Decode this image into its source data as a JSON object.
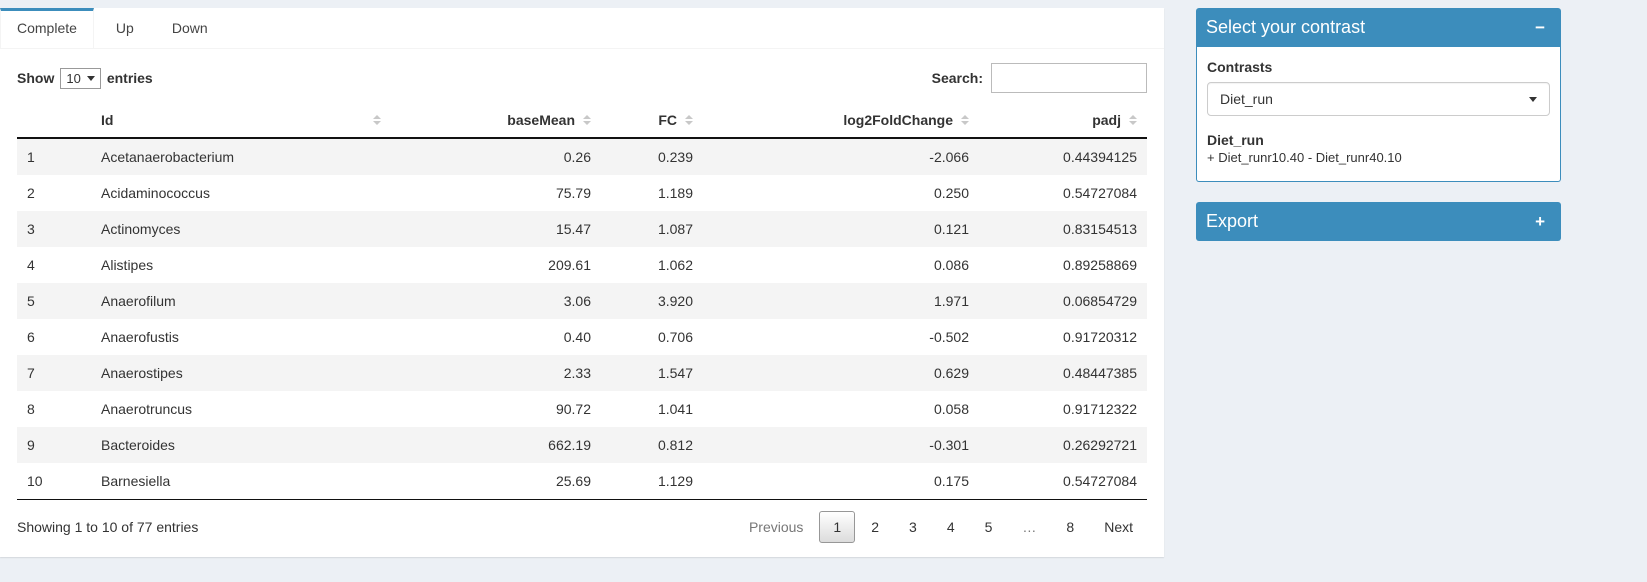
{
  "tabs": [
    {
      "label": "Complete",
      "active": true
    },
    {
      "label": "Up",
      "active": false
    },
    {
      "label": "Down",
      "active": false
    }
  ],
  "controls": {
    "show_label": "Show",
    "page_length": "10",
    "entries_label": "entries",
    "search_label": "Search:",
    "search_value": ""
  },
  "table": {
    "columns": [
      "",
      "Id",
      "baseMean",
      "FC",
      "log2FoldChange",
      "padj"
    ],
    "rows": [
      [
        "1",
        "Acetanaerobacterium",
        "0.26",
        "0.239",
        "-2.066",
        "0.44394125"
      ],
      [
        "2",
        "Acidaminococcus",
        "75.79",
        "1.189",
        "0.250",
        "0.54727084"
      ],
      [
        "3",
        "Actinomyces",
        "15.47",
        "1.087",
        "0.121",
        "0.83154513"
      ],
      [
        "4",
        "Alistipes",
        "209.61",
        "1.062",
        "0.086",
        "0.89258869"
      ],
      [
        "5",
        "Anaerofilum",
        "3.06",
        "3.920",
        "1.971",
        "0.06854729"
      ],
      [
        "6",
        "Anaerofustis",
        "0.40",
        "0.706",
        "-0.502",
        "0.91720312"
      ],
      [
        "7",
        "Anaerostipes",
        "2.33",
        "1.547",
        "0.629",
        "0.48447385"
      ],
      [
        "8",
        "Anaerotruncus",
        "90.72",
        "1.041",
        "0.058",
        "0.91712322"
      ],
      [
        "9",
        "Bacteroides",
        "662.19",
        "0.812",
        "-0.301",
        "0.26292721"
      ],
      [
        "10",
        "Barnesiella",
        "25.69",
        "1.129",
        "0.175",
        "0.54727084"
      ]
    ]
  },
  "footer": {
    "info": "Showing 1 to 10 of 77 entries",
    "pagination": [
      {
        "label": "Previous",
        "state": "disabled"
      },
      {
        "label": "1",
        "state": "active"
      },
      {
        "label": "2",
        "state": "normal"
      },
      {
        "label": "3",
        "state": "normal"
      },
      {
        "label": "4",
        "state": "normal"
      },
      {
        "label": "5",
        "state": "normal"
      },
      {
        "label": "…",
        "state": "disabled"
      },
      {
        "label": "8",
        "state": "normal"
      },
      {
        "label": "Next",
        "state": "normal"
      }
    ]
  },
  "contrast_box": {
    "title": "Select your contrast",
    "collapse_icon": "−",
    "contrasts_label": "Contrasts",
    "selected_contrast": "Diet_run",
    "contrast_name": "Diet_run",
    "contrast_formula": "+ Diet_runr10.40 - Diet_runr40.10"
  },
  "export_box": {
    "title": "Export",
    "expand_icon": "+"
  },
  "colors": {
    "primary": "#3c8dbc",
    "page_bg": "#ecf0f5"
  }
}
